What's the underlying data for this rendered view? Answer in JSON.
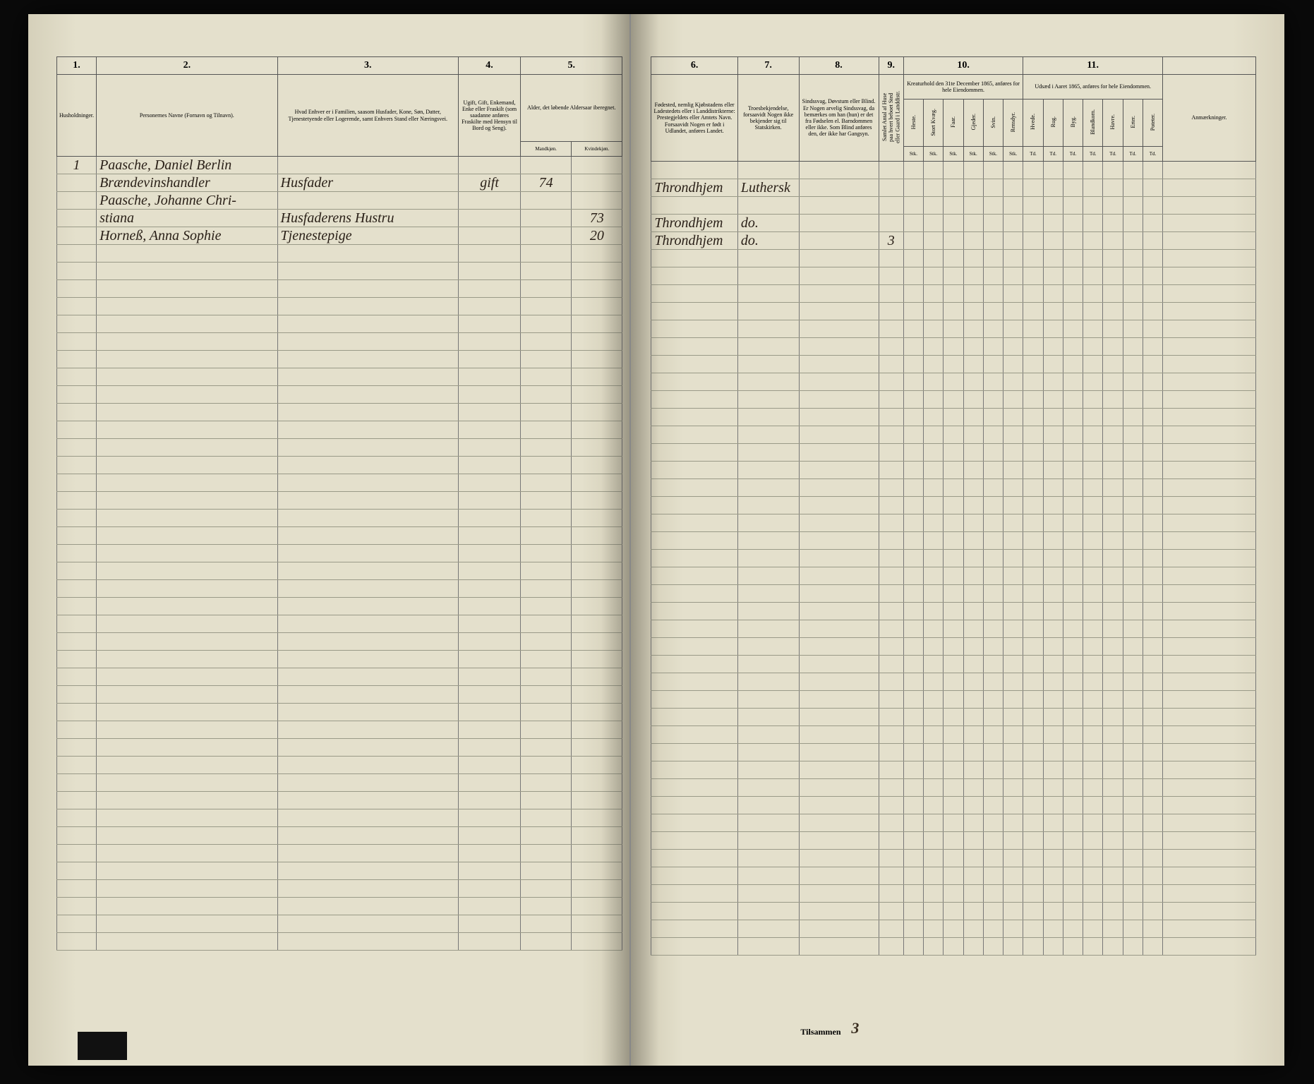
{
  "columns_left": {
    "nums": [
      "1.",
      "2.",
      "3.",
      "4.",
      "5."
    ],
    "headers": [
      "Husholdninger.",
      "Personernes Navne (Fornavn og Tilnavn).",
      "Hvad Enhver er i Familien, saasom Husfader, Kone, Søn, Datter, Tjenestetyende eller Logerende, samt Enhvers Stand eller Næringsvei.",
      "Ugift, Gift, Enkemand, Enke eller Fraskilt (som saadanne anføres Fraskilte med Hensyn til Bord og Seng).",
      "Alder, det løbende Aldersaar iberegnet."
    ],
    "sub45": [
      "Mandkjøn.",
      "Kvindekjøn."
    ]
  },
  "columns_right": {
    "nums": [
      "6.",
      "7.",
      "8.",
      "9.",
      "10.",
      "11.",
      ""
    ],
    "headers": [
      "Fødested, nemlig Kjøbstadens eller Ladestedets eller i Landdistrikterne: Prestegjeldets eller Amtets Navn. Forsaavidt Nogen er født i Udlandet, anføres Landet.",
      "Troesbekjendelse, forsaavidt Nogen ikke bekjender sig til Statskirken.",
      "Sindssvag, Døvstum eller Blind. Er Nogen arvelig Sindssvag, da bemærkes om han (hun) er det fra Fødselen el. Barndommen eller ikke. Som Blind anføres den, der ikke har Gangsyn.",
      "",
      "Kreaturhold den 31te December 1865, anføres for hele Eiendommen.",
      "Udsæd i Aaret 1865, anføres for hele Eiendommen.",
      "Anmærkninger."
    ],
    "col9": "Samlet Antal af Huse paa hvert beboet Sted eller Gaard i Landdistr.",
    "col10_items": [
      "Heste.",
      "Stort Kvæg.",
      "Faar.",
      "Gjeder.",
      "Svin.",
      "Rensdyr."
    ],
    "col10_sub": [
      "Stk.",
      "Stk.",
      "Stk.",
      "Stk.",
      "Stk.",
      "Stk."
    ],
    "col11_items": [
      "Hvede.",
      "Rug.",
      "Byg.",
      "Blandkorn.",
      "Havre.",
      "Erter.",
      "Poteter."
    ],
    "col11_sub": [
      "Td.",
      "Td.",
      "Td.",
      "Td.",
      "Td.",
      "Td.",
      "Td."
    ]
  },
  "rows_left": [
    {
      "c1": "1",
      "c2": "Paasche, Daniel Berlin",
      "c3": "",
      "c4": "",
      "c5m": "",
      "c5k": ""
    },
    {
      "c1": "",
      "c2": "Brændevinshandler",
      "c3": "Husfader",
      "c4": "gift",
      "c5m": "74",
      "c5k": ""
    },
    {
      "c1": "",
      "c2": "Paasche, Johanne Chri-",
      "c3": "",
      "c4": "",
      "c5m": "",
      "c5k": ""
    },
    {
      "c1": "",
      "c2": "stiana",
      "c3": "Husfaderens Hustru",
      "c4": "",
      "c5m": "",
      "c5k": "73"
    },
    {
      "c1": "",
      "c2": "Horneß, Anna Sophie",
      "c3": "Tjenestepige",
      "c4": "",
      "c5m": "",
      "c5k": "20"
    }
  ],
  "rows_right": [
    {
      "c6": "",
      "c7": "",
      "c8": "",
      "c9": ""
    },
    {
      "c6": "Throndhjem",
      "c7": "Luthersk",
      "c8": "",
      "c9": ""
    },
    {
      "c6": "",
      "c7": "",
      "c8": "",
      "c9": ""
    },
    {
      "c6": "Throndhjem",
      "c7": "do.",
      "c8": "",
      "c9": ""
    },
    {
      "c6": "Throndhjem",
      "c7": "do.",
      "c8": "",
      "c9": "3"
    }
  ],
  "footer": {
    "label": "Tilsammen",
    "value": "3"
  },
  "blank_rows": 40
}
